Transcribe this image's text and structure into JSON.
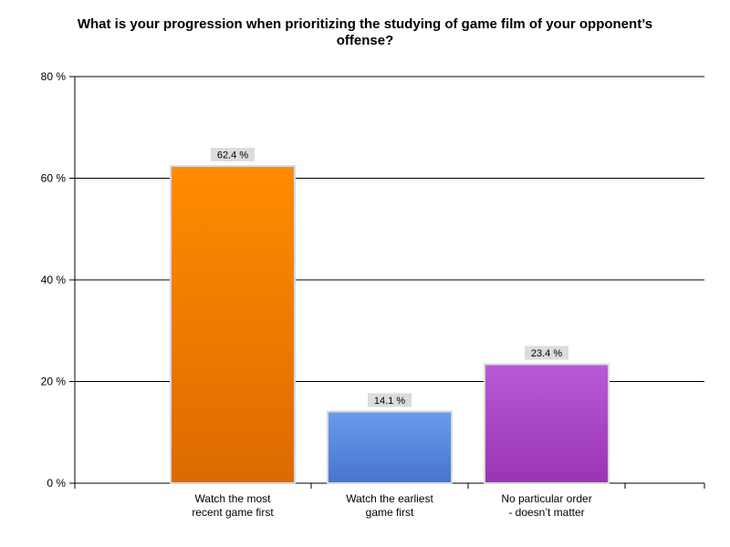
{
  "chart_data": {
    "type": "bar",
    "title_lines": [
      "What is your progression when prioritizing the studying of game film of your opponent’s",
      "offense?"
    ],
    "categories": [
      [
        "Watch the most",
        "recent game first"
      ],
      [
        "Watch the earliest",
        "game first"
      ],
      [
        "No particular order",
        "- doesn’t matter"
      ]
    ],
    "values": [
      62.4,
      14.1,
      23.4
    ],
    "value_labels": [
      "62.4 %",
      "14.1 %",
      "23.4 %"
    ],
    "ylim": [
      0,
      80
    ],
    "yticks": [
      0,
      20,
      40,
      60,
      80
    ],
    "ytick_labels": [
      "0 %",
      "20 %",
      "40 %",
      "60 %",
      "80 %"
    ],
    "grid": true,
    "bar_colors": [
      {
        "top": "#ff8c00",
        "bottom": "#dd6a00"
      },
      {
        "top": "#6a9cec",
        "bottom": "#4774cf"
      },
      {
        "top": "#b85ad8",
        "bottom": "#9a34b4"
      }
    ]
  }
}
